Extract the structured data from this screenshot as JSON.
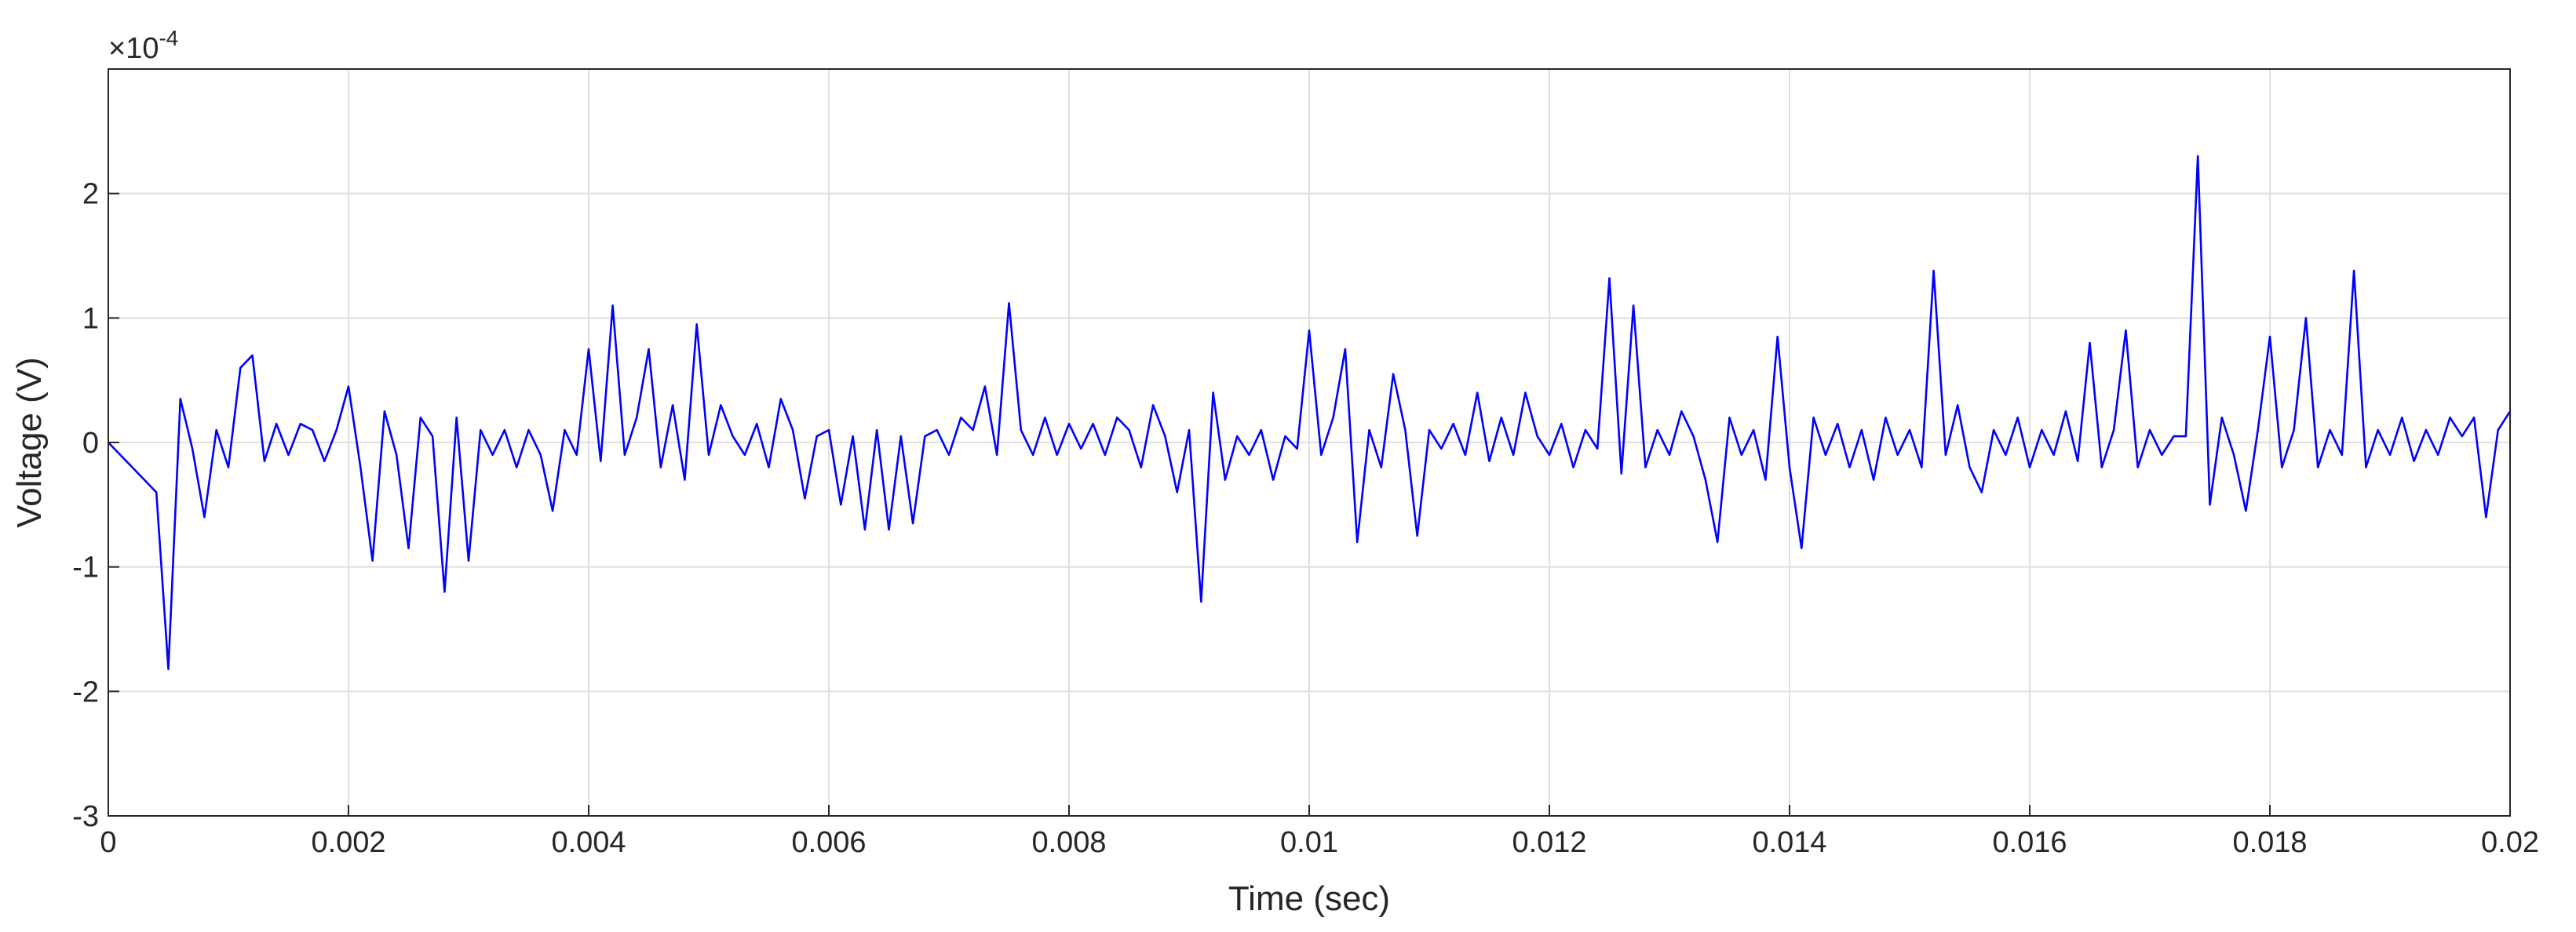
{
  "chart_data": {
    "type": "line",
    "x_label": "Time (sec)",
    "y_label": "Voltage (V)",
    "y_multiplier": {
      "base": "×10",
      "exponent": "-4"
    },
    "xlim": [
      0,
      0.02
    ],
    "ylim": [
      -3,
      3
    ],
    "xticks": [
      0,
      0.002,
      0.004,
      0.006,
      0.008,
      0.01,
      0.012,
      0.014,
      0.016,
      0.018,
      0.02
    ],
    "yticks": [
      -3,
      -2,
      -1,
      0,
      1,
      2
    ],
    "grid": true,
    "color": "#0000ff",
    "x": [
      0,
      0.0001,
      0.0002,
      0.0003,
      0.0004,
      0.0005,
      0.0006,
      0.0007,
      0.0008,
      0.0009,
      0.001,
      0.0011,
      0.0012,
      0.0013,
      0.0014,
      0.0015,
      0.0016,
      0.0017,
      0.0018,
      0.0019,
      0.002,
      0.0021,
      0.0022,
      0.0023,
      0.0024,
      0.0025,
      0.0026,
      0.0027,
      0.0028,
      0.0029,
      0.003,
      0.0031,
      0.0032,
      0.0033,
      0.0034,
      0.0035,
      0.0036,
      0.0037,
      0.0038,
      0.0039,
      0.004,
      0.0041,
      0.0042,
      0.0043,
      0.0044,
      0.0045,
      0.0046,
      0.0047,
      0.0048,
      0.0049,
      0.005,
      0.0051,
      0.0052,
      0.0053,
      0.0054,
      0.0055,
      0.0056,
      0.0057,
      0.0058,
      0.0059,
      0.006,
      0.0061,
      0.0062,
      0.0063,
      0.0064,
      0.0065,
      0.0066,
      0.0067,
      0.0068,
      0.0069,
      0.007,
      0.0071,
      0.0072,
      0.0073,
      0.0074,
      0.0075,
      0.0076,
      0.0077,
      0.0078,
      0.0079,
      0.008,
      0.0081,
      0.0082,
      0.0083,
      0.0084,
      0.0085,
      0.0086,
      0.0087,
      0.0088,
      0.0089,
      0.009,
      0.0091,
      0.0092,
      0.0093,
      0.0094,
      0.0095,
      0.0096,
      0.0097,
      0.0098,
      0.0099,
      0.01,
      0.0101,
      0.0102,
      0.0103,
      0.0104,
      0.0105,
      0.0106,
      0.0107,
      0.0108,
      0.0109,
      0.011,
      0.0111,
      0.0112,
      0.0113,
      0.0114,
      0.0115,
      0.0116,
      0.0117,
      0.0118,
      0.0119,
      0.012,
      0.0121,
      0.0122,
      0.0123,
      0.0124,
      0.0125,
      0.0126,
      0.0127,
      0.0128,
      0.0129,
      0.013,
      0.0131,
      0.0132,
      0.0133,
      0.0134,
      0.0135,
      0.0136,
      0.0137,
      0.0138,
      0.0139,
      0.014,
      0.0141,
      0.0142,
      0.0143,
      0.0144,
      0.0145,
      0.0146,
      0.0147,
      0.0148,
      0.0149,
      0.015,
      0.0151,
      0.0152,
      0.0153,
      0.0154,
      0.0155,
      0.0156,
      0.0157,
      0.0158,
      0.0159,
      0.016,
      0.0161,
      0.0162,
      0.0163,
      0.0164,
      0.0165,
      0.0166,
      0.0167,
      0.0168,
      0.0169,
      0.017,
      0.0171,
      0.0172,
      0.0173,
      0.0174,
      0.0175,
      0.0176,
      0.0177,
      0.0178,
      0.0179,
      0.018,
      0.0181,
      0.0182,
      0.0183,
      0.0184,
      0.0185,
      0.0186,
      0.0187,
      0.0188,
      0.0189,
      0.019,
      0.0191,
      0.0192,
      0.0193,
      0.0194,
      0.0195,
      0.0196,
      0.0197,
      0.0198,
      0.0199,
      0.02
    ],
    "values": [
      0,
      -0.1,
      -0.2,
      -0.3,
      -0.4,
      -1.82,
      0.35,
      -0.05,
      -0.6,
      0.1,
      -0.2,
      0.6,
      0.7,
      -0.15,
      0.15,
      -0.1,
      0.15,
      0.1,
      -0.15,
      0.1,
      0.45,
      -0.2,
      -0.95,
      0.25,
      -0.1,
      -0.85,
      0.2,
      0.05,
      -1.2,
      0.2,
      -0.95,
      0.1,
      -0.1,
      0.1,
      -0.2,
      0.1,
      -0.1,
      -0.55,
      0.1,
      -0.1,
      0.75,
      -0.15,
      1.1,
      -0.1,
      0.2,
      0.75,
      -0.2,
      0.3,
      -0.3,
      0.95,
      -0.1,
      0.3,
      0.05,
      -0.1,
      0.15,
      -0.2,
      0.35,
      0.1,
      -0.45,
      0.05,
      0.1,
      -0.5,
      0.05,
      -0.7,
      0.1,
      -0.7,
      0.05,
      -0.65,
      0.05,
      0.1,
      -0.1,
      0.2,
      0.1,
      0.45,
      -0.1,
      1.12,
      0.1,
      -0.1,
      0.2,
      -0.1,
      0.15,
      -0.05,
      0.15,
      -0.1,
      0.2,
      0.1,
      -0.2,
      0.3,
      0.05,
      -0.4,
      0.1,
      -1.28,
      0.4,
      -0.3,
      0.05,
      -0.1,
      0.1,
      -0.3,
      0.05,
      -0.05,
      0.9,
      -0.1,
      0.2,
      0.75,
      -0.8,
      0.1,
      -0.2,
      0.55,
      0.1,
      -0.75,
      0.1,
      -0.05,
      0.15,
      -0.1,
      0.4,
      -0.15,
      0.2,
      -0.1,
      0.4,
      0.05,
      -0.1,
      0.15,
      -0.2,
      0.1,
      -0.05,
      1.32,
      -0.25,
      1.1,
      -0.2,
      0.1,
      -0.1,
      0.25,
      0.05,
      -0.3,
      -0.8,
      0.2,
      -0.1,
      0.1,
      -0.3,
      0.85,
      -0.2,
      -0.85,
      0.2,
      -0.1,
      0.15,
      -0.2,
      0.1,
      -0.3,
      0.2,
      -0.1,
      0.1,
      -0.2,
      1.38,
      -0.1,
      0.3,
      -0.2,
      -0.4,
      0.1,
      -0.1,
      0.2,
      -0.2,
      0.1,
      -0.1,
      0.25,
      -0.15,
      0.8,
      -0.2,
      0.1,
      0.9,
      -0.2,
      0.1,
      -0.1,
      0.05,
      0.05,
      2.3,
      -0.5,
      0.2,
      -0.1,
      -0.55,
      0.1,
      0.85,
      -0.2,
      0.1,
      1.0,
      -0.2,
      0.1,
      -0.1,
      1.38,
      -0.2,
      0.1,
      -0.1,
      0.2,
      -0.15,
      0.1,
      -0.1,
      0.2,
      0.05,
      0.2,
      -0.6,
      0.1,
      0.25
    ]
  }
}
